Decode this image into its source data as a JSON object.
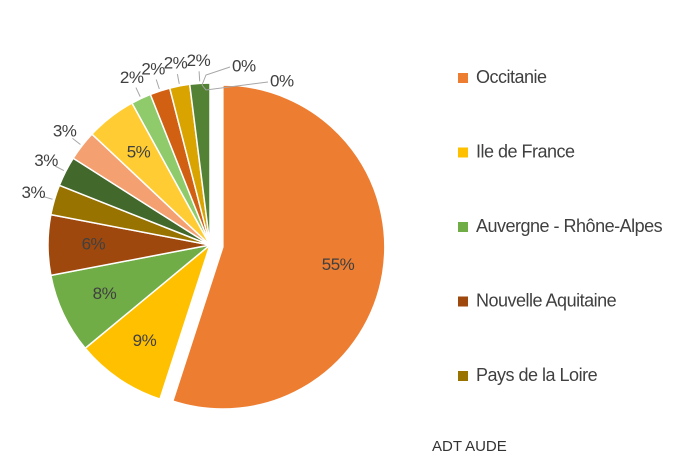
{
  "chart_data": {
    "type": "pie",
    "categories": [
      "Occitanie",
      "Ile de France",
      "Auvergne - Rhône-Alpes",
      "Nouvelle Aquitaine",
      "Pays de la Loire",
      null,
      null,
      null,
      null,
      null,
      null,
      null,
      null,
      null
    ],
    "values": [
      55,
      9,
      8,
      6,
      3,
      3,
      3,
      5,
      2,
      2,
      2,
      2,
      0,
      0
    ],
    "value_labels": [
      "55%",
      "9%",
      "8%",
      "6%",
      "3%",
      "3%",
      "3%",
      "5%",
      "2%",
      "2%",
      "2%",
      "2%",
      "0%",
      "0%"
    ],
    "colors": [
      "#ed7d31",
      "#ffc000",
      "#70ad47",
      "#9e480e",
      "#997300",
      "#43682b",
      "#f4a070",
      "#ffcd33",
      "#8fca6b",
      "#d26012",
      "#d9a400",
      "#548235",
      "#bf9000",
      "#6fa046"
    ],
    "exploded": [
      0
    ],
    "legend": "right",
    "source": "ADT AUDE"
  }
}
